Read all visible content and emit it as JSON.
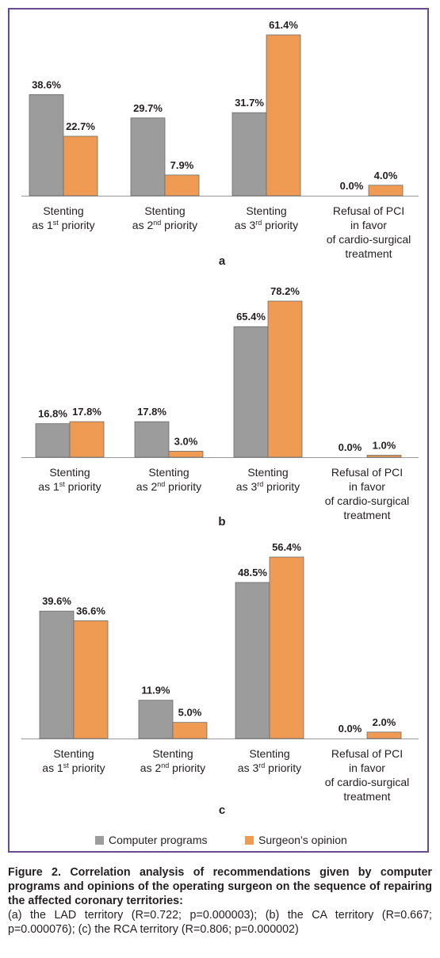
{
  "colors": {
    "computer": "#9c9c9c",
    "surgeon": "#f09b53",
    "frame": "#6a4a8e"
  },
  "chart_data": [
    {
      "type": "bar",
      "panel": "a",
      "categories": [
        [
          "Stenting",
          "as 1|st| priority"
        ],
        [
          "Stenting",
          "as 2|nd| priority"
        ],
        [
          "Stenting",
          "as 3|rd| priority"
        ],
        [
          "Refusal of PCI",
          "in favor",
          "of cardio-surgical",
          "treatment"
        ]
      ],
      "series": [
        {
          "name": "Computer programs",
          "values": [
            38.6,
            29.7,
            31.7,
            0.0
          ],
          "labels": [
            "38.6%",
            "29.7%",
            "31.7%",
            "0.0%"
          ]
        },
        {
          "name": "Surgeon’s opinion",
          "values": [
            22.7,
            7.9,
            61.4,
            4.0
          ],
          "labels": [
            "22.7%",
            "7.9%",
            "61.4%",
            "4.0%"
          ]
        }
      ],
      "ylim": [
        0,
        61.4
      ]
    },
    {
      "type": "bar",
      "panel": "b",
      "categories": [
        [
          "Stenting",
          "as 1|st| priority"
        ],
        [
          "Stenting",
          "as 2|nd| priority"
        ],
        [
          "Stenting",
          "as 3|rd| priority"
        ],
        [
          "Refusal of PCI",
          "in favor",
          "of cardio-surgical",
          "treatment"
        ]
      ],
      "series": [
        {
          "name": "Computer programs",
          "values": [
            16.8,
            17.8,
            65.4,
            0.0
          ],
          "labels": [
            "16.8%",
            "17.8%",
            "65.4%",
            "0.0%"
          ]
        },
        {
          "name": "Surgeon’s opinion",
          "values": [
            17.8,
            3.0,
            78.2,
            1.0
          ],
          "labels": [
            "17.8%",
            "3.0%",
            "78.2%",
            "1.0%"
          ]
        }
      ],
      "ylim": [
        0,
        78.2
      ]
    },
    {
      "type": "bar",
      "panel": "c",
      "categories": [
        [
          "Stenting",
          "as 1|st| priority"
        ],
        [
          "Stenting",
          "as 2|nd| priority"
        ],
        [
          "Stenting",
          "as 3|rd| priority"
        ],
        [
          "Refusal of PCI",
          "in favor",
          "of cardio-surgical",
          "treatment"
        ]
      ],
      "series": [
        {
          "name": "Computer programs",
          "values": [
            39.6,
            11.9,
            48.5,
            0.0
          ],
          "labels": [
            "39.6%",
            "11.9%",
            "48.5%",
            "0.0%"
          ]
        },
        {
          "name": "Surgeon’s opinion",
          "values": [
            36.6,
            5.0,
            56.4,
            2.0
          ],
          "labels": [
            "36.6%",
            "5.0%",
            "56.4%",
            "2.0%"
          ]
        }
      ],
      "ylim": [
        0,
        56.4
      ]
    }
  ],
  "legend": {
    "computer": "Computer programs",
    "surgeon": "Surgeon’s opinion"
  },
  "caption": {
    "title": "Figure 2. Correlation analysis of recommendations given by computer programs and opinions of the operating surgeon on the sequence of repairing the affected coronary territories:",
    "body": "(a) the LAD territory (R=0.722; p=0.000003); (b) the CA territory (R=0.667; p=0.000076); (c) the RCA territory (R=0.806; p=0.000002)"
  }
}
